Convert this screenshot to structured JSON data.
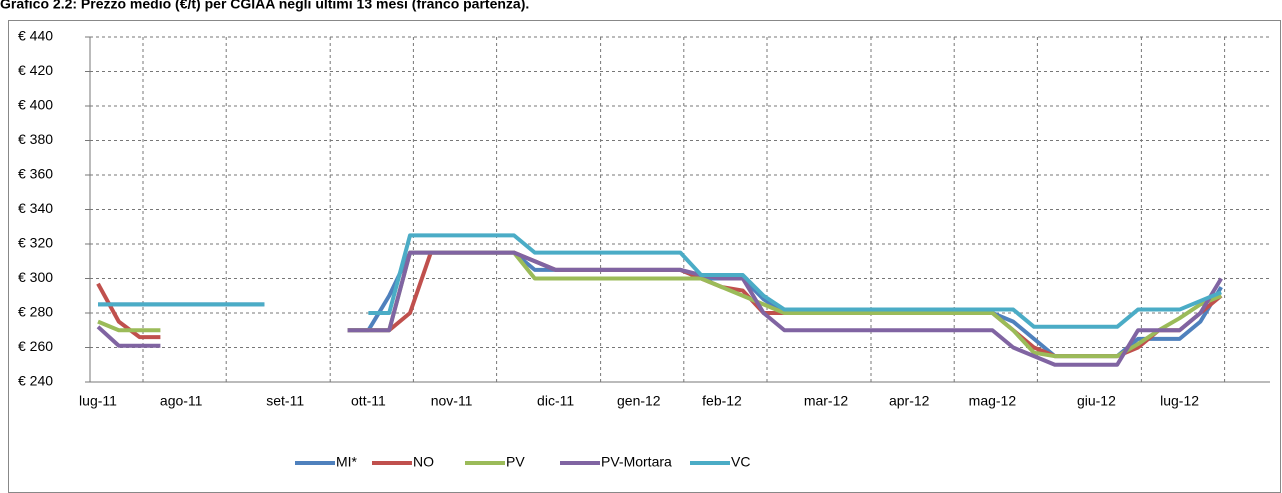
{
  "chart_data": {
    "type": "line",
    "title": "Grafico 2.2: Prezzo medio (€/t) per CGIAA negli ultimi 13 mesi (franco partenza).",
    "categories": [
      "lug-11",
      null,
      null,
      null,
      "ago-11",
      null,
      null,
      null,
      null,
      "set-11",
      null,
      null,
      null,
      "ott-11",
      null,
      null,
      null,
      "nov-11",
      null,
      null,
      null,
      null,
      "dic-11",
      null,
      null,
      null,
      "gen-12",
      null,
      null,
      null,
      "feb-12",
      null,
      null,
      null,
      null,
      "mar-12",
      null,
      null,
      null,
      "apr-12",
      null,
      null,
      null,
      "mag-12",
      null,
      null,
      null,
      null,
      "giu-12",
      null,
      null,
      null,
      "lug-12",
      null,
      null
    ],
    "series": [
      {
        "name": "MI*",
        "color": "#4f81bd",
        "values": [
          285,
          285,
          285,
          285,
          285,
          285,
          285,
          285,
          285,
          null,
          null,
          null,
          270,
          270,
          290,
          315,
          315,
          315,
          315,
          315,
          315,
          305,
          305,
          305,
          305,
          305,
          305,
          305,
          305,
          300,
          300,
          300,
          288,
          280,
          280,
          280,
          280,
          280,
          280,
          280,
          280,
          280,
          280,
          280,
          275,
          265,
          255,
          255,
          255,
          255,
          265,
          265,
          265,
          275,
          295
        ]
      },
      {
        "name": "NO",
        "color": "#c0504d",
        "values": [
          297,
          275,
          266,
          266,
          null,
          null,
          null,
          null,
          null,
          null,
          null,
          null,
          270,
          270,
          270,
          280,
          315,
          315,
          315,
          315,
          315,
          310,
          305,
          305,
          305,
          305,
          305,
          305,
          305,
          300,
          295,
          293,
          280,
          280,
          280,
          280,
          280,
          280,
          280,
          280,
          280,
          280,
          280,
          280,
          270,
          260,
          255,
          255,
          255,
          255,
          260,
          270,
          270,
          280,
          290
        ]
      },
      {
        "name": "PV",
        "color": "#9bbb59",
        "values": [
          275,
          270,
          270,
          270,
          null,
          null,
          null,
          null,
          null,
          null,
          null,
          null,
          270,
          270,
          270,
          315,
          315,
          315,
          315,
          315,
          315,
          300,
          300,
          300,
          300,
          300,
          300,
          300,
          300,
          300,
          295,
          290,
          285,
          280,
          280,
          280,
          280,
          280,
          280,
          280,
          280,
          280,
          280,
          280,
          270,
          257,
          255,
          255,
          255,
          255,
          262,
          270,
          277,
          285,
          290
        ]
      },
      {
        "name": "PV-Mortara",
        "color": "#8064a2",
        "values": [
          272,
          261,
          261,
          261,
          null,
          null,
          null,
          null,
          null,
          null,
          null,
          null,
          270,
          270,
          270,
          315,
          315,
          315,
          315,
          315,
          315,
          310,
          305,
          305,
          305,
          305,
          305,
          305,
          305,
          302,
          300,
          300,
          280,
          270,
          270,
          270,
          270,
          270,
          270,
          270,
          270,
          270,
          270,
          270,
          260,
          255,
          250,
          250,
          250,
          250,
          270,
          270,
          270,
          280,
          300
        ]
      },
      {
        "name": "VC",
        "color": "#4bacc6",
        "values": [
          285,
          285,
          285,
          285,
          285,
          285,
          285,
          285,
          285,
          null,
          null,
          null,
          null,
          280,
          280,
          325,
          325,
          325,
          325,
          325,
          325,
          315,
          315,
          315,
          315,
          315,
          315,
          315,
          315,
          302,
          302,
          302,
          290,
          282,
          282,
          282,
          282,
          282,
          282,
          282,
          282,
          282,
          282,
          282,
          282,
          272,
          272,
          272,
          272,
          272,
          282,
          282,
          282,
          287,
          292
        ]
      }
    ],
    "ylim": [
      240,
      440
    ],
    "yticks": [
      {
        "value": 240,
        "label": "€ 240"
      },
      {
        "value": 260,
        "label": "€ 260"
      },
      {
        "value": 280,
        "label": "€ 280"
      },
      {
        "value": 300,
        "label": "€ 300"
      },
      {
        "value": 320,
        "label": "€ 320"
      },
      {
        "value": 340,
        "label": "€ 340"
      },
      {
        "value": 360,
        "label": "€ 360"
      },
      {
        "value": 380,
        "label": "€ 380"
      },
      {
        "value": 400,
        "label": "€ 400"
      },
      {
        "value": 420,
        "label": "€ 420"
      },
      {
        "value": 440,
        "label": "€ 440"
      }
    ],
    "grid": true,
    "legend": "bottom"
  }
}
